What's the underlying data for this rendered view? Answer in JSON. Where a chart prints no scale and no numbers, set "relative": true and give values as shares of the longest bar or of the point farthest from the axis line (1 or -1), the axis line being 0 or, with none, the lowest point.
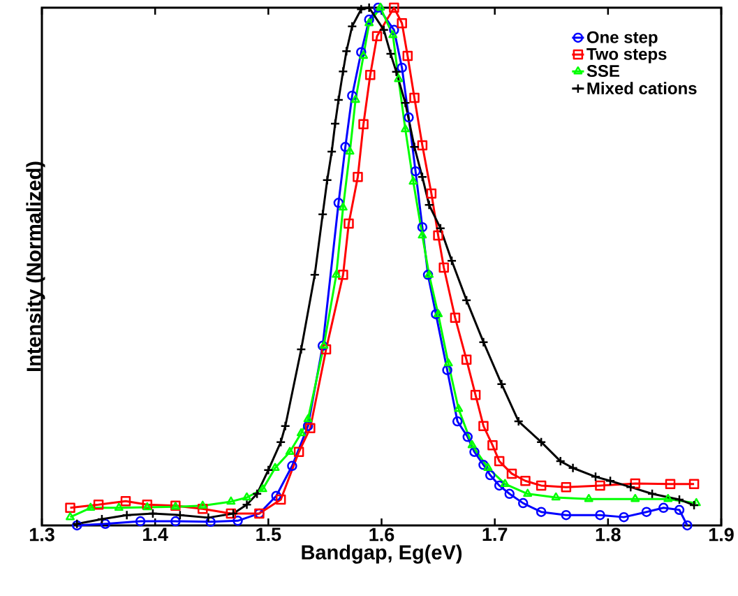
{
  "chart_data": {
    "type": "line",
    "xlabel": "Bandgap, Eg(eV)",
    "ylabel": "Intensity (Normalized)",
    "relative": true,
    "xlim": [
      1.3,
      1.9
    ],
    "xticks": [
      1.3,
      1.4,
      1.5,
      1.6,
      1.7,
      1.8,
      1.9
    ],
    "legend": "top right",
    "grid": false,
    "line_style": "solid",
    "series": [
      {
        "name": "One step",
        "color": "#0000ff",
        "marker": "circle",
        "x": [
          1.331,
          1.356,
          1.387,
          1.418,
          1.449,
          1.473,
          1.492,
          1.507,
          1.521,
          1.535,
          1.548,
          1.562,
          1.568,
          1.574,
          1.582,
          1.589,
          1.597,
          1.611,
          1.618,
          1.624,
          1.63,
          1.636,
          1.641,
          1.648,
          1.658,
          1.667,
          1.676,
          1.682,
          1.69,
          1.696,
          1.704,
          1.713,
          1.725,
          1.741,
          1.763,
          1.793,
          1.814,
          1.834,
          1.849,
          1.863,
          1.87
        ],
        "values": [
          0.0,
          0.003,
          0.008,
          0.008,
          0.007,
          0.009,
          0.023,
          0.057,
          0.115,
          0.192,
          0.347,
          0.623,
          0.731,
          0.83,
          0.914,
          0.977,
          1.0,
          0.957,
          0.884,
          0.788,
          0.684,
          0.576,
          0.484,
          0.408,
          0.3,
          0.201,
          0.171,
          0.142,
          0.117,
          0.097,
          0.077,
          0.061,
          0.043,
          0.026,
          0.02,
          0.02,
          0.016,
          0.026,
          0.034,
          0.03,
          0.0
        ]
      },
      {
        "name": "Two steps",
        "color": "#ff0000",
        "marker": "square",
        "x": [
          1.325,
          1.35,
          1.374,
          1.393,
          1.418,
          1.442,
          1.467,
          1.492,
          1.511,
          1.527,
          1.537,
          1.551,
          1.566,
          1.571,
          1.579,
          1.584,
          1.59,
          1.596,
          1.611,
          1.618,
          1.623,
          1.629,
          1.636,
          1.644,
          1.65,
          1.655,
          1.665,
          1.675,
          1.683,
          1.69,
          1.698,
          1.704,
          1.715,
          1.727,
          1.741,
          1.763,
          1.793,
          1.824,
          1.855,
          1.876
        ],
        "values": [
          0.034,
          0.04,
          0.047,
          0.04,
          0.038,
          0.032,
          0.023,
          0.023,
          0.05,
          0.142,
          0.188,
          0.34,
          0.484,
          0.583,
          0.673,
          0.775,
          0.87,
          0.945,
          1.0,
          0.97,
          0.907,
          0.826,
          0.734,
          0.641,
          0.56,
          0.498,
          0.401,
          0.32,
          0.252,
          0.192,
          0.155,
          0.124,
          0.1,
          0.086,
          0.077,
          0.074,
          0.077,
          0.081,
          0.08,
          0.08
        ]
      },
      {
        "name": "SSE",
        "color": "#00ff00",
        "marker": "triangle",
        "x": [
          1.325,
          1.343,
          1.368,
          1.393,
          1.418,
          1.442,
          1.467,
          1.481,
          1.495,
          1.506,
          1.519,
          1.529,
          1.535,
          1.549,
          1.56,
          1.566,
          1.572,
          1.577,
          1.584,
          1.589,
          1.599,
          1.61,
          1.615,
          1.621,
          1.628,
          1.636,
          1.642,
          1.65,
          1.659,
          1.668,
          1.68,
          1.694,
          1.709,
          1.729,
          1.754,
          1.783,
          1.824,
          1.853,
          1.878
        ],
        "values": [
          0.016,
          0.034,
          0.034,
          0.035,
          0.036,
          0.038,
          0.046,
          0.054,
          0.07,
          0.111,
          0.142,
          0.178,
          0.205,
          0.347,
          0.484,
          0.614,
          0.722,
          0.822,
          0.907,
          0.97,
          1.0,
          0.947,
          0.862,
          0.765,
          0.664,
          0.56,
          0.484,
          0.408,
          0.313,
          0.225,
          0.155,
          0.111,
          0.08,
          0.061,
          0.054,
          0.051,
          0.051,
          0.051,
          0.043
        ]
      },
      {
        "name": "Mixed cations",
        "color": "#000000",
        "marker": "cross",
        "x": [
          1.331,
          1.353,
          1.375,
          1.398,
          1.422,
          1.447,
          1.469,
          1.481,
          1.49,
          1.5,
          1.511,
          1.515,
          1.529,
          1.541,
          1.548,
          1.552,
          1.556,
          1.559,
          1.562,
          1.566,
          1.569,
          1.574,
          1.582,
          1.589,
          1.602,
          1.608,
          1.613,
          1.621,
          1.629,
          1.636,
          1.642,
          1.652,
          1.662,
          1.675,
          1.69,
          1.706,
          1.721,
          1.741,
          1.758,
          1.769,
          1.789,
          1.802,
          1.82,
          1.839,
          1.863,
          1.876
        ],
        "values": [
          0.003,
          0.012,
          0.02,
          0.023,
          0.02,
          0.015,
          0.023,
          0.04,
          0.061,
          0.107,
          0.161,
          0.192,
          0.34,
          0.484,
          0.601,
          0.667,
          0.722,
          0.776,
          0.822,
          0.877,
          0.916,
          0.964,
          0.997,
          1.0,
          0.957,
          0.911,
          0.876,
          0.816,
          0.731,
          0.673,
          0.619,
          0.574,
          0.511,
          0.435,
          0.354,
          0.273,
          0.201,
          0.161,
          0.124,
          0.111,
          0.094,
          0.086,
          0.074,
          0.061,
          0.05,
          0.039
        ]
      }
    ]
  }
}
